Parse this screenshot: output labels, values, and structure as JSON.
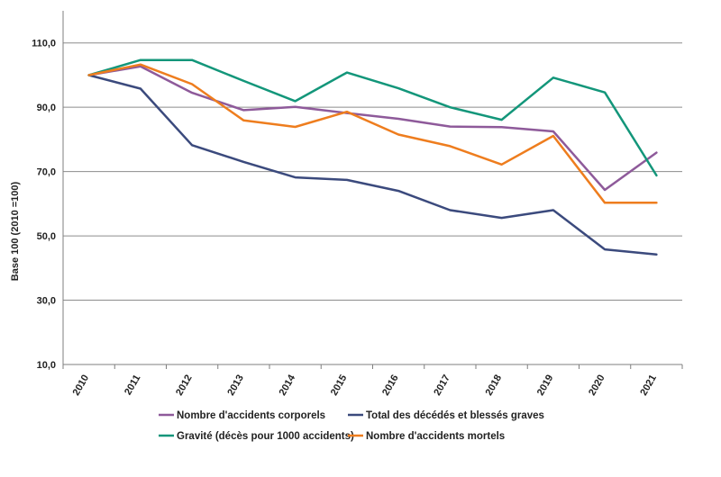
{
  "chart_data": {
    "type": "line",
    "ylabel": "Base 100 (2010 =100)",
    "xlabel": "",
    "ylim": [
      10,
      120
    ],
    "yticks": [
      10,
      30,
      50,
      70,
      90,
      110
    ],
    "ytick_labels": [
      "10,0",
      "30,0",
      "50,0",
      "70,0",
      "90,0",
      "110,0"
    ],
    "categories": [
      "2010",
      "2011",
      "2012",
      "2013",
      "2014",
      "2015",
      "2016",
      "2017",
      "2018",
      "2019",
      "2020",
      "2021"
    ],
    "grid": "horizontal",
    "legend_position": "bottom",
    "series": [
      {
        "name": "Nombre d'accidents corporels",
        "color": "#8e5a9a",
        "values": [
          100,
          102.7,
          94.5,
          89.1,
          90.1,
          88.2,
          86.4,
          84.0,
          83.8,
          82.5,
          64.3,
          75.9
        ]
      },
      {
        "name": "Total des décédés et blessés graves",
        "color": "#3b4a7d",
        "values": [
          100,
          95.8,
          78.2,
          73.0,
          68.2,
          67.4,
          64.0,
          58.0,
          55.6,
          58.0,
          45.8,
          44.2
        ]
      },
      {
        "name": "Gravité (décès pour 1000 accidents)",
        "color": "#13967a",
        "values": [
          100,
          104.7,
          104.7,
          98.2,
          91.9,
          100.8,
          95.9,
          90.0,
          86.1,
          99.2,
          94.6,
          68.8
        ]
      },
      {
        "name": "Nombre d'accidents mortels",
        "color": "#ee7d1e",
        "values": [
          100,
          103.3,
          97.2,
          85.9,
          83.9,
          88.6,
          81.5,
          77.9,
          72.2,
          81.1,
          60.3,
          60.3
        ]
      }
    ]
  }
}
